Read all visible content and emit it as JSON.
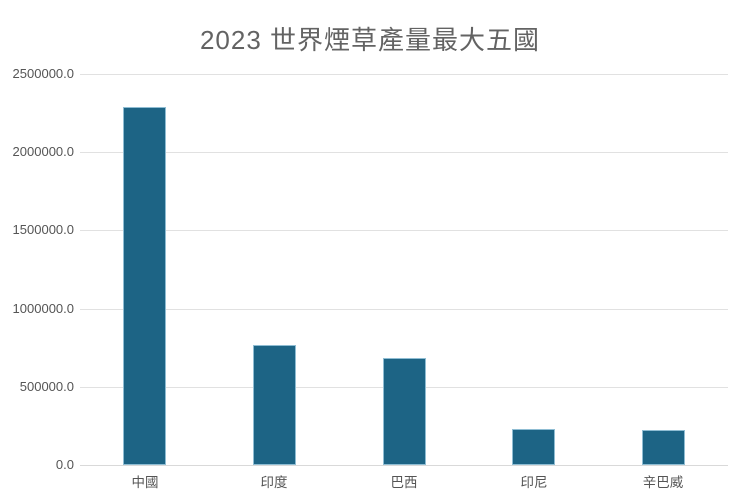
{
  "page": {
    "background": "#ffffff"
  },
  "chart_data": {
    "type": "bar",
    "title": "2023 世界煙草產量最大五國",
    "categories": [
      "中國",
      "印度",
      "巴西",
      "印尼",
      "辛巴威"
    ],
    "values": [
      2290000,
      767000,
      685000,
      230000,
      224000
    ],
    "xlabel": "",
    "ylabel": "",
    "ylim": [
      0,
      2500000
    ],
    "ytick_step": 500000,
    "ytick_labels": [
      "0.0",
      "500000.0",
      "1000000.0",
      "1500000.0",
      "2000000.0",
      "2500000.0"
    ],
    "grid": "horizontal-only",
    "legend_position": "none",
    "colors": {
      "bar_fill": "#1d6485",
      "bar_edge": "#8fbdd3",
      "gridline": "#e1e1e1",
      "axis_line": "#d9d9d9",
      "title_text": "#636363",
      "tick_text": "#555555"
    }
  }
}
